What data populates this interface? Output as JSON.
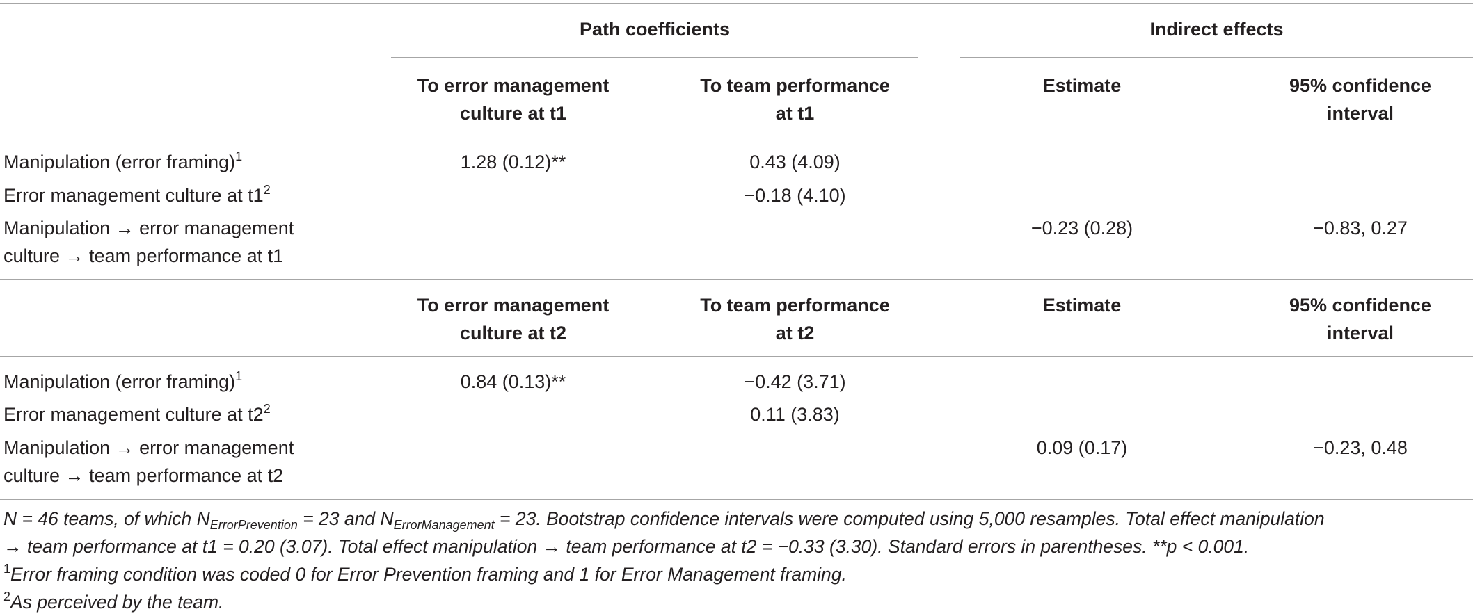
{
  "header": {
    "group1": "Path coefficients",
    "group2": "Indirect effects"
  },
  "block1": {
    "col1": [
      "To error management",
      "culture at t1"
    ],
    "col2": [
      "To team performance",
      "at t1"
    ],
    "col3": [
      "Estimate"
    ],
    "col4": [
      "95% confidence",
      "interval"
    ],
    "rows": [
      {
        "label": [
          "Manipulation (error framing)"
        ],
        "sup": "1",
        "c1": "1.28 (0.12)**",
        "c2": "0.43 (4.09)",
        "c3": "",
        "c4": ""
      },
      {
        "label": [
          "Error management culture at t1"
        ],
        "sup": "2",
        "c1": "",
        "c2": "−0.18 (4.10)",
        "c3": "",
        "c4": ""
      },
      {
        "label": [
          "Manipulation → error management",
          "culture → team performance at t1"
        ],
        "sup": "",
        "c1": "",
        "c2": "",
        "c3": "−0.23 (0.28)",
        "c4": "−0.83, 0.27"
      }
    ]
  },
  "block2": {
    "col1": [
      "To error management",
      "culture at t2"
    ],
    "col2": [
      "To team performance",
      "at t2"
    ],
    "col3": [
      "Estimate"
    ],
    "col4": [
      "95% confidence",
      "interval"
    ],
    "rows": [
      {
        "label": [
          "Manipulation (error framing)"
        ],
        "sup": "1",
        "c1": "0.84 (0.13)**",
        "c2": "−0.42 (3.71)",
        "c3": "",
        "c4": ""
      },
      {
        "label": [
          "Error management culture at t2"
        ],
        "sup": "2",
        "c1": "",
        "c2": "0.11 (3.83)",
        "c3": "",
        "c4": ""
      },
      {
        "label": [
          "Manipulation → error management",
          "culture → team performance at t2"
        ],
        "sup": "",
        "c1": "",
        "c2": "",
        "c3": "0.09 (0.17)",
        "c4": "−0.23, 0.48"
      }
    ]
  },
  "notes": {
    "n_prefix": "N = 46 teams, of which N",
    "n_sub1": "ErrorPrevention",
    "n_mid": " = 23 and N",
    "n_sub2": "ErrorManagement",
    "n_rest": " = 23. Bootstrap confidence intervals were computed using 5,000 resamples. Total effect manipulation",
    "line2": "→ team performance at t1 = 0.20 (3.07). Total effect manipulation → team performance at t2 = −0.33 (3.30). Standard errors in parentheses. **p < 0.001.",
    "fn1_mark": "1",
    "fn1": "Error framing condition was coded 0 for Error Prevention framing and 1 for Error Management framing.",
    "fn2_mark": "2",
    "fn2": "As perceived by the team."
  }
}
